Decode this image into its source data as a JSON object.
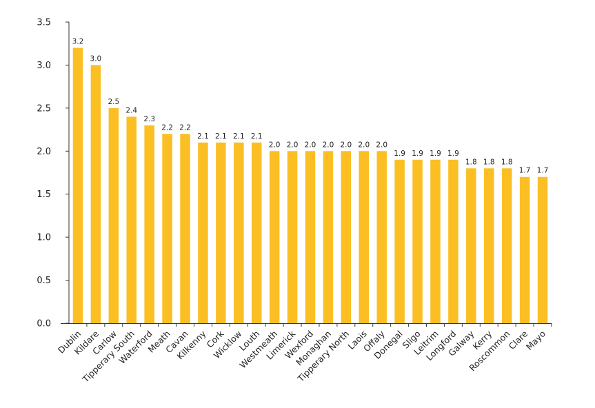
{
  "chart_data": {
    "type": "bar",
    "title": "",
    "xlabel": "",
    "ylabel": "",
    "ylim": [
      0,
      3.5
    ],
    "yticks": [
      "0.0",
      "0.5",
      "1.0",
      "1.5",
      "2.0",
      "2.5",
      "3.0",
      "3.5"
    ],
    "grid": false,
    "legend": "none",
    "bar_color": "#FBBF24",
    "categories": [
      "Dublin",
      "Kildare",
      "Carlow",
      "Tipperary South",
      "Waterford",
      "Meath",
      "Cavan",
      "Kilkenny",
      "Cork",
      "Wicklow",
      "Louth",
      "Westmeath",
      "Limerick",
      "Wexford",
      "Monaghan",
      "Tipperary North",
      "Laois",
      "Offaly",
      "Donegal",
      "Sligo",
      "Leitrim",
      "Longford",
      "Galway",
      "Kerry",
      "Roscommon",
      "Clare",
      "Mayo"
    ],
    "values": [
      3.2,
      3.0,
      2.5,
      2.4,
      2.3,
      2.2,
      2.2,
      2.1,
      2.1,
      2.1,
      2.1,
      2.0,
      2.0,
      2.0,
      2.0,
      2.0,
      2.0,
      2.0,
      1.9,
      1.9,
      1.9,
      1.9,
      1.8,
      1.8,
      1.8,
      1.7,
      1.7
    ],
    "value_labels": [
      "3.2",
      "3.0",
      "2.5",
      "2.4",
      "2.3",
      "2.2",
      "2.2",
      "2.1",
      "2.1",
      "2.1",
      "2.1",
      "2.0",
      "2.0",
      "2.0",
      "2.0",
      "2.0",
      "2.0",
      "2.0",
      "1.9",
      "1.9",
      "1.9",
      "1.9",
      "1.8",
      "1.8",
      "1.8",
      "1.7",
      "1.7"
    ]
  }
}
